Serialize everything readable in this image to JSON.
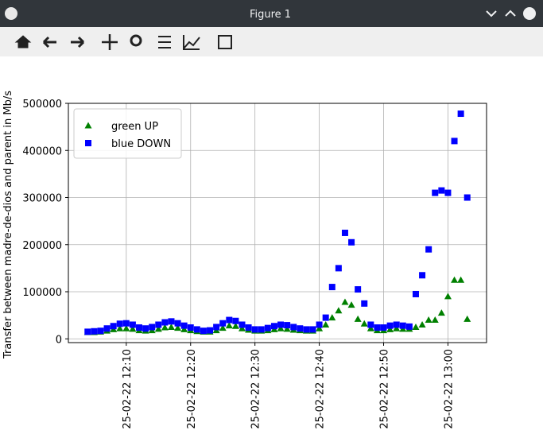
{
  "window": {
    "title": "Figure 1"
  },
  "chart_data": {
    "type": "scatter",
    "y_label": "Transfer between madre-de-dios and parent in Mb/s",
    "x": [
      "25-02-22 12:04",
      "25-02-22 12:05",
      "25-02-22 12:06",
      "25-02-22 12:07",
      "25-02-22 12:08",
      "25-02-22 12:09",
      "25-02-22 12:10",
      "25-02-22 12:11",
      "25-02-22 12:12",
      "25-02-22 12:13",
      "25-02-22 12:14",
      "25-02-22 12:15",
      "25-02-22 12:16",
      "25-02-22 12:17",
      "25-02-22 12:18",
      "25-02-22 12:19",
      "25-02-22 12:20",
      "25-02-22 12:21",
      "25-02-22 12:22",
      "25-02-22 12:23",
      "25-02-22 12:24",
      "25-02-22 12:25",
      "25-02-22 12:26",
      "25-02-22 12:27",
      "25-02-22 12:28",
      "25-02-22 12:29",
      "25-02-22 12:30",
      "25-02-22 12:31",
      "25-02-22 12:32",
      "25-02-22 12:33",
      "25-02-22 12:34",
      "25-02-22 12:35",
      "25-02-22 12:36",
      "25-02-22 12:37",
      "25-02-22 12:38",
      "25-02-22 12:39",
      "25-02-22 12:40",
      "25-02-22 12:41",
      "25-02-22 12:42",
      "25-02-22 12:43",
      "25-02-22 12:44",
      "25-02-22 12:45",
      "25-02-22 12:46",
      "25-02-22 12:47",
      "25-02-22 12:48",
      "25-02-22 12:49",
      "25-02-22 12:50",
      "25-02-22 12:51",
      "25-02-22 12:52",
      "25-02-22 12:53",
      "25-02-22 12:54",
      "25-02-22 12:55",
      "25-02-22 12:56",
      "25-02-22 12:57",
      "25-02-22 12:58",
      "25-02-22 12:59",
      "25-02-22 13:00",
      "25-02-22 13:01",
      "25-02-22 13:02",
      "25-02-22 13:03"
    ],
    "series": [
      {
        "name": "green UP",
        "color": "#008000",
        "marker": "triangle",
        "values": [
          14000,
          14000,
          15000,
          17000,
          20000,
          22000,
          22000,
          21000,
          18000,
          17000,
          18000,
          21000,
          24000,
          25000,
          23000,
          20000,
          18000,
          16000,
          15000,
          15000,
          18000,
          23000,
          28000,
          27000,
          22000,
          19000,
          17000,
          17000,
          18000,
          20000,
          22000,
          21000,
          19000,
          18000,
          17000,
          17000,
          22000,
          30000,
          45000,
          60000,
          78000,
          72000,
          42000,
          32000,
          22000,
          18000,
          18000,
          20000,
          22000,
          21000,
          21000,
          25000,
          30000,
          40000,
          40000,
          55000,
          90000,
          125000,
          125000,
          42000
        ]
      },
      {
        "name": "blue DOWN",
        "color": "#0000ff",
        "marker": "square",
        "values": [
          15000,
          16000,
          17000,
          22000,
          27000,
          32000,
          33000,
          30000,
          24000,
          22000,
          25000,
          30000,
          35000,
          37000,
          33000,
          28000,
          24000,
          20000,
          17000,
          18000,
          25000,
          33000,
          40000,
          38000,
          30000,
          24000,
          20000,
          20000,
          23000,
          27000,
          30000,
          29000,
          25000,
          22000,
          20000,
          20000,
          30000,
          45000,
          110000,
          150000,
          225000,
          205000,
          105000,
          75000,
          30000,
          24000,
          24000,
          28000,
          30000,
          28000,
          26000,
          95000,
          135000,
          190000,
          310000,
          315000,
          310000,
          420000,
          478000,
          300000
        ]
      }
    ],
    "xlim": [
      "25-02-22 12:01",
      "25-02-22 13:06"
    ],
    "xticks": [
      "25-02-22 12:10",
      "25-02-22 12:20",
      "25-02-22 12:30",
      "25-02-22 12:40",
      "25-02-22 12:50",
      "25-02-22 13:00"
    ],
    "ylim": [
      -8000,
      500000
    ],
    "yticks": [
      0,
      100000,
      200000,
      300000,
      400000,
      500000
    ],
    "grid": true,
    "legend": "upper left"
  }
}
